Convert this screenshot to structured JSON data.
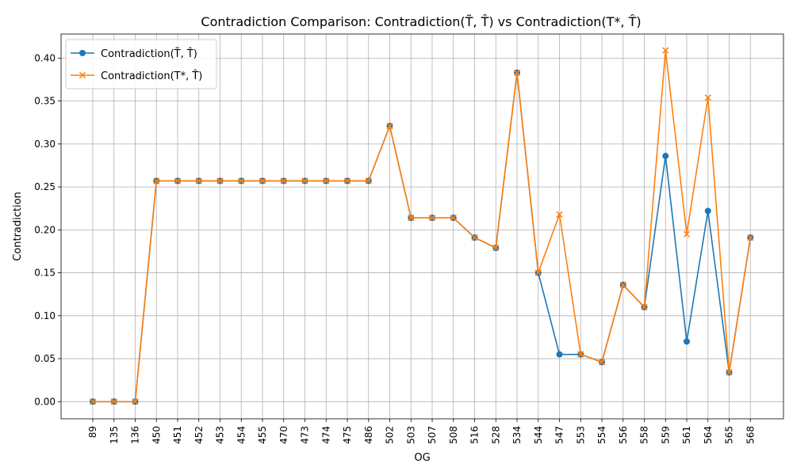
{
  "chart_data": {
    "type": "line",
    "title": "Contradiction Comparison: Contradiction(T̃, T̂) vs Contradiction(T*, T̂)",
    "xlabel": "OG",
    "ylabel": "Contradiction",
    "categories": [
      "89",
      "135",
      "136",
      "450",
      "451",
      "452",
      "453",
      "454",
      "455",
      "470",
      "473",
      "474",
      "475",
      "486",
      "502",
      "503",
      "507",
      "508",
      "516",
      "528",
      "534",
      "544",
      "547",
      "553",
      "554",
      "556",
      "558",
      "559",
      "561",
      "564",
      "565",
      "568"
    ],
    "ylim": [
      -0.02,
      0.428
    ],
    "yticks": [
      0.0,
      0.05,
      0.1,
      0.15,
      0.2,
      0.25,
      0.3,
      0.35,
      0.4
    ],
    "ytick_labels": [
      "0.00",
      "0.05",
      "0.10",
      "0.15",
      "0.20",
      "0.25",
      "0.30",
      "0.35",
      "0.40"
    ],
    "grid": true,
    "legend_position": "top-left",
    "series": [
      {
        "name": "Contradiction(T̃, T̂)",
        "color": "#1f77b4",
        "marker": "circle",
        "values": [
          0.0,
          0.0,
          0.0,
          0.257,
          0.257,
          0.257,
          0.257,
          0.257,
          0.257,
          0.257,
          0.257,
          0.257,
          0.257,
          0.257,
          0.321,
          0.214,
          0.214,
          0.214,
          0.191,
          0.179,
          0.383,
          0.15,
          0.055,
          0.055,
          0.046,
          0.136,
          0.11,
          0.286,
          0.07,
          0.222,
          0.034,
          0.191
        ]
      },
      {
        "name": "Contradiction(T*, T̂)",
        "color": "#ff7f0e",
        "marker": "x",
        "values": [
          0.0,
          0.0,
          0.0,
          0.257,
          0.257,
          0.257,
          0.257,
          0.257,
          0.257,
          0.257,
          0.257,
          0.257,
          0.257,
          0.257,
          0.321,
          0.214,
          0.214,
          0.214,
          0.191,
          0.179,
          0.383,
          0.15,
          0.218,
          0.055,
          0.046,
          0.136,
          0.11,
          0.409,
          0.195,
          0.354,
          0.034,
          0.191
        ]
      }
    ]
  }
}
